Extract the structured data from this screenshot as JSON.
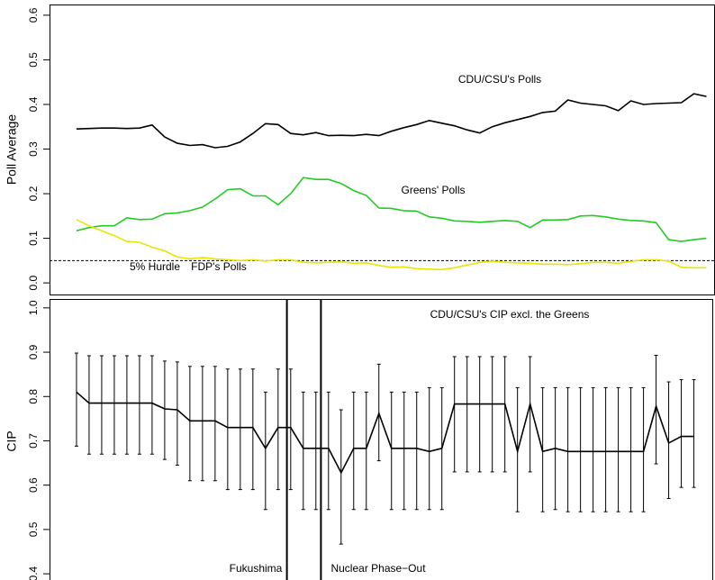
{
  "chart_data": [
    {
      "type": "line",
      "ylabel": "Poll Average",
      "x": [
        1,
        2,
        3,
        4,
        5,
        6,
        7,
        8,
        9,
        10,
        11,
        12,
        13,
        14,
        15,
        16,
        17,
        18,
        19,
        20,
        21,
        22,
        23,
        24,
        25,
        26,
        27,
        28,
        29,
        30,
        31,
        32,
        33,
        34,
        35,
        36,
        37,
        38,
        39,
        40,
        41,
        42,
        43,
        44,
        45,
        46,
        47,
        48,
        49,
        50,
        51
      ],
      "xlim": [
        -1.14,
        51.64
      ],
      "ylim": [
        -0.028,
        0.624
      ],
      "yticks": [
        {
          "value": 0,
          "label": "0.0"
        },
        0.1,
        0.2,
        0.3,
        0.4,
        0.5,
        0.6
      ],
      "hline": 0.05,
      "hline_label": "5% Hurdle",
      "series": [
        {
          "name": "CDU/CSU's Polls",
          "color": "#000000",
          "values": [
            0.345,
            0.346,
            0.347,
            0.347,
            0.346,
            0.347,
            0.354,
            0.327,
            0.313,
            0.308,
            0.31,
            0.303,
            0.306,
            0.316,
            0.335,
            0.357,
            0.355,
            0.335,
            0.332,
            0.337,
            0.33,
            0.331,
            0.33,
            0.333,
            0.33,
            0.34,
            0.348,
            0.355,
            0.364,
            0.358,
            0.352,
            0.343,
            0.336,
            0.35,
            0.359,
            0.366,
            0.373,
            0.382,
            0.385,
            0.41,
            0.403,
            0.4,
            0.397,
            0.386,
            0.408,
            0.4,
            0.402,
            0.403,
            0.404,
            0.424,
            0.418
          ]
        },
        {
          "name": "Greens' Polls",
          "color": "#22cc22",
          "values": [
            0.117,
            0.124,
            0.128,
            0.128,
            0.146,
            0.142,
            0.143,
            0.155,
            0.157,
            0.162,
            0.17,
            0.188,
            0.209,
            0.211,
            0.195,
            0.195,
            0.175,
            0.2,
            0.236,
            0.232,
            0.232,
            0.223,
            0.207,
            0.196,
            0.168,
            0.167,
            0.162,
            0.161,
            0.148,
            0.145,
            0.139,
            0.138,
            0.136,
            0.138,
            0.14,
            0.138,
            0.124,
            0.141,
            0.141,
            0.142,
            0.15,
            0.151,
            0.148,
            0.143,
            0.14,
            0.139,
            0.135,
            0.097,
            0.093,
            0.097,
            0.1
          ]
        },
        {
          "name": "FDP's Polls",
          "color": "#e6e600",
          "values": [
            0.142,
            0.128,
            0.117,
            0.106,
            0.093,
            0.091,
            0.08,
            0.072,
            0.058,
            0.054,
            0.057,
            0.054,
            0.052,
            0.05,
            0.052,
            0.049,
            0.052,
            0.052,
            0.046,
            0.045,
            0.046,
            0.047,
            0.044,
            0.045,
            0.039,
            0.035,
            0.036,
            0.032,
            0.031,
            0.03,
            0.034,
            0.04,
            0.046,
            0.049,
            0.046,
            0.045,
            0.044,
            0.042,
            0.042,
            0.041,
            0.043,
            0.046,
            0.046,
            0.044,
            0.048,
            0.052,
            0.052,
            0.049,
            0.035,
            0.034,
            0.034
          ]
        }
      ]
    },
    {
      "type": "errorbar",
      "ylabel": "CIP",
      "x": [
        1,
        2,
        3,
        4,
        5,
        6,
        7,
        8,
        9,
        10,
        11,
        12,
        13,
        14,
        15,
        16,
        17,
        18,
        19,
        20,
        21,
        22,
        23,
        24,
        25,
        26,
        27,
        28,
        29,
        30,
        31,
        32,
        33,
        34,
        35,
        36,
        37,
        38,
        39,
        40,
        41,
        42,
        43,
        44,
        45,
        46,
        47,
        48,
        49,
        50
      ],
      "xlim": [
        -1.14,
        51.64
      ],
      "ylim": [
        0.386,
        1.02
      ],
      "yticks": [
        0.4,
        0.5,
        0.6,
        0.7,
        0.8,
        0.9,
        {
          "value": 1,
          "label": "1.0"
        }
      ],
      "vlines": [
        17.7,
        20.4
      ],
      "vline_labels": [
        "Fukushima",
        "Nuclear Phase−Out"
      ],
      "series": [
        {
          "name": "CDU/CSU's CIP excl. the Greens",
          "color": "#000000",
          "values": [
            0.81,
            0.785,
            0.785,
            0.785,
            0.785,
            0.785,
            0.785,
            0.772,
            0.77,
            0.745,
            0.745,
            0.745,
            0.73,
            0.73,
            0.73,
            0.683,
            0.73,
            0.73,
            0.683,
            0.683,
            0.683,
            0.628,
            0.683,
            0.683,
            0.762,
            0.683,
            0.683,
            0.683,
            0.676,
            0.683,
            0.783,
            0.783,
            0.783,
            0.783,
            0.783,
            0.676,
            0.783,
            0.676,
            0.683,
            0.676,
            0.676,
            0.676,
            0.676,
            0.676,
            0.676,
            0.676,
            0.778,
            0.695,
            0.71,
            0.71
          ],
          "lower": [
            0.688,
            0.67,
            0.67,
            0.67,
            0.67,
            0.67,
            0.67,
            0.658,
            0.645,
            0.61,
            0.61,
            0.61,
            0.59,
            0.59,
            0.59,
            0.545,
            0.59,
            0.59,
            0.545,
            0.545,
            0.545,
            0.467,
            0.545,
            0.545,
            0.655,
            0.545,
            0.545,
            0.545,
            0.545,
            0.545,
            0.63,
            0.63,
            0.63,
            0.63,
            0.63,
            0.54,
            0.63,
            0.54,
            0.545,
            0.54,
            0.54,
            0.54,
            0.54,
            0.54,
            0.54,
            0.54,
            0.648,
            0.57,
            0.595,
            0.595
          ],
          "upper": [
            0.898,
            0.892,
            0.892,
            0.892,
            0.892,
            0.892,
            0.892,
            0.88,
            0.878,
            0.868,
            0.868,
            0.868,
            0.862,
            0.862,
            0.862,
            0.81,
            0.862,
            0.862,
            0.81,
            0.81,
            0.81,
            0.77,
            0.81,
            0.81,
            0.873,
            0.81,
            0.81,
            0.81,
            0.82,
            0.82,
            0.89,
            0.89,
            0.89,
            0.89,
            0.89,
            0.82,
            0.89,
            0.82,
            0.82,
            0.82,
            0.82,
            0.82,
            0.82,
            0.82,
            0.82,
            0.82,
            0.893,
            0.833,
            0.838,
            0.838
          ]
        }
      ]
    }
  ]
}
